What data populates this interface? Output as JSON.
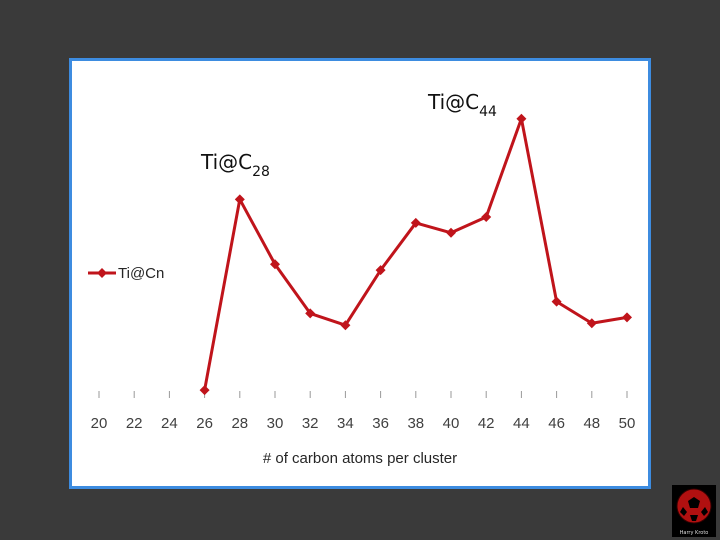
{
  "chart_data": {
    "type": "line",
    "x": [
      26,
      28,
      30,
      32,
      34,
      36,
      38,
      40,
      42,
      44,
      46,
      48,
      50
    ],
    "series": [
      {
        "name": "Ti@Cn",
        "values": [
          3,
          100,
          67,
          42,
          36,
          64,
          88,
          83,
          91,
          141,
          48,
          37,
          40
        ]
      }
    ],
    "x_ticks": [
      "20",
      "22",
      "24",
      "26",
      "28",
      "30",
      "32",
      "34",
      "36",
      "38",
      "40",
      "42",
      "44",
      "46",
      "48",
      "50"
    ],
    "xlabel": "# of carbon atoms per cluster",
    "ylabel": "",
    "xlim": [
      20,
      50
    ],
    "ylim": [
      0,
      150
    ],
    "grid": false,
    "legend_position": "left",
    "annotations": [
      {
        "label": "Ti@C",
        "subscript": "28",
        "x": 28
      },
      {
        "label": "Ti@C",
        "subscript": "44",
        "x": 44
      }
    ],
    "colors": {
      "series": "#c0141b",
      "frame": "#3d8ce0",
      "background": "#3a3a3a"
    }
  },
  "logo": {
    "caption": "Harry Kroto"
  }
}
